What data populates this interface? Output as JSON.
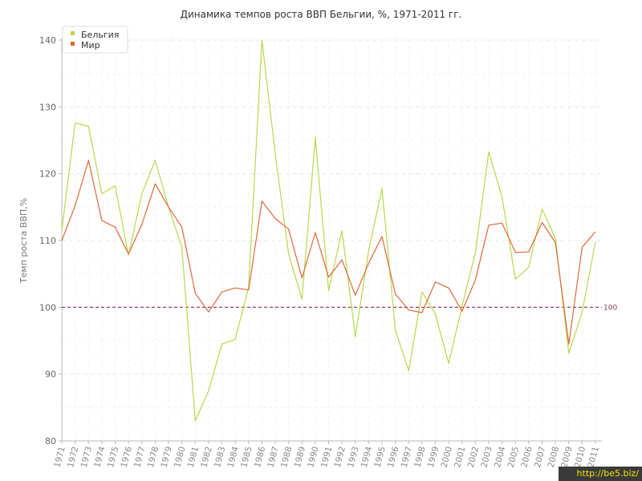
{
  "chart_data": {
    "type": "line",
    "title": "Динамика темпов роста ВВП Бельгии, %, 1971-2011 гг.",
    "ylabel": "Темп роста ВВП,%",
    "xlabel": "",
    "ylim": [
      80,
      140
    ],
    "yticks": [
      80,
      90,
      100,
      110,
      120,
      130,
      140
    ],
    "grid": true,
    "legend": "top-left",
    "reference_line": {
      "value": 100,
      "label": "100",
      "color": "#9b2c3e"
    },
    "x": [
      "1971",
      "1972",
      "1973",
      "1974",
      "1975",
      "1976",
      "1977",
      "1978",
      "1979",
      "1980",
      "1981",
      "1982",
      "1983",
      "1984",
      "1985",
      "1986",
      "1987",
      "1988",
      "1989",
      "1990",
      "1991",
      "1992",
      "1993",
      "1994",
      "1995",
      "1996",
      "1997",
      "1998",
      "1999",
      "2000",
      "2001",
      "2002",
      "2003",
      "2004",
      "2005",
      "2006",
      "2007",
      "2008",
      "2009",
      "2010",
      "2011"
    ],
    "series": [
      {
        "name": "Бельгия",
        "color": "#b8d84a",
        "values": [
          111.5,
          127.6,
          127.1,
          117.0,
          118.2,
          107.8,
          117.0,
          122.0,
          115.0,
          109.0,
          83.0,
          87.5,
          94.5,
          95.2,
          103.0,
          140.0,
          123.0,
          108.0,
          101.2,
          125.4,
          102.5,
          111.5,
          95.6,
          108.5,
          117.8,
          96.6,
          90.5,
          102.3,
          99.0,
          91.6,
          100.2,
          108.2,
          123.3,
          116.5,
          104.2,
          106.0,
          114.7,
          110.3,
          93.1,
          99.3,
          109.8
        ]
      },
      {
        "name": "Мир",
        "color": "#e0683a",
        "values": [
          110.0,
          115.2,
          122.0,
          113.0,
          112.0,
          108.0,
          112.4,
          118.5,
          115.0,
          112.0,
          102.1,
          99.3,
          102.3,
          102.9,
          102.6,
          115.9,
          113.3,
          111.7,
          104.4,
          111.2,
          104.5,
          107.1,
          101.8,
          106.6,
          110.6,
          102.0,
          99.6,
          99.2,
          103.8,
          102.9,
          99.4,
          104.1,
          112.3,
          112.6,
          108.2,
          108.3,
          112.7,
          109.7,
          94.5,
          109.0,
          111.3
        ]
      }
    ]
  },
  "watermark": "http://be5.biz/"
}
